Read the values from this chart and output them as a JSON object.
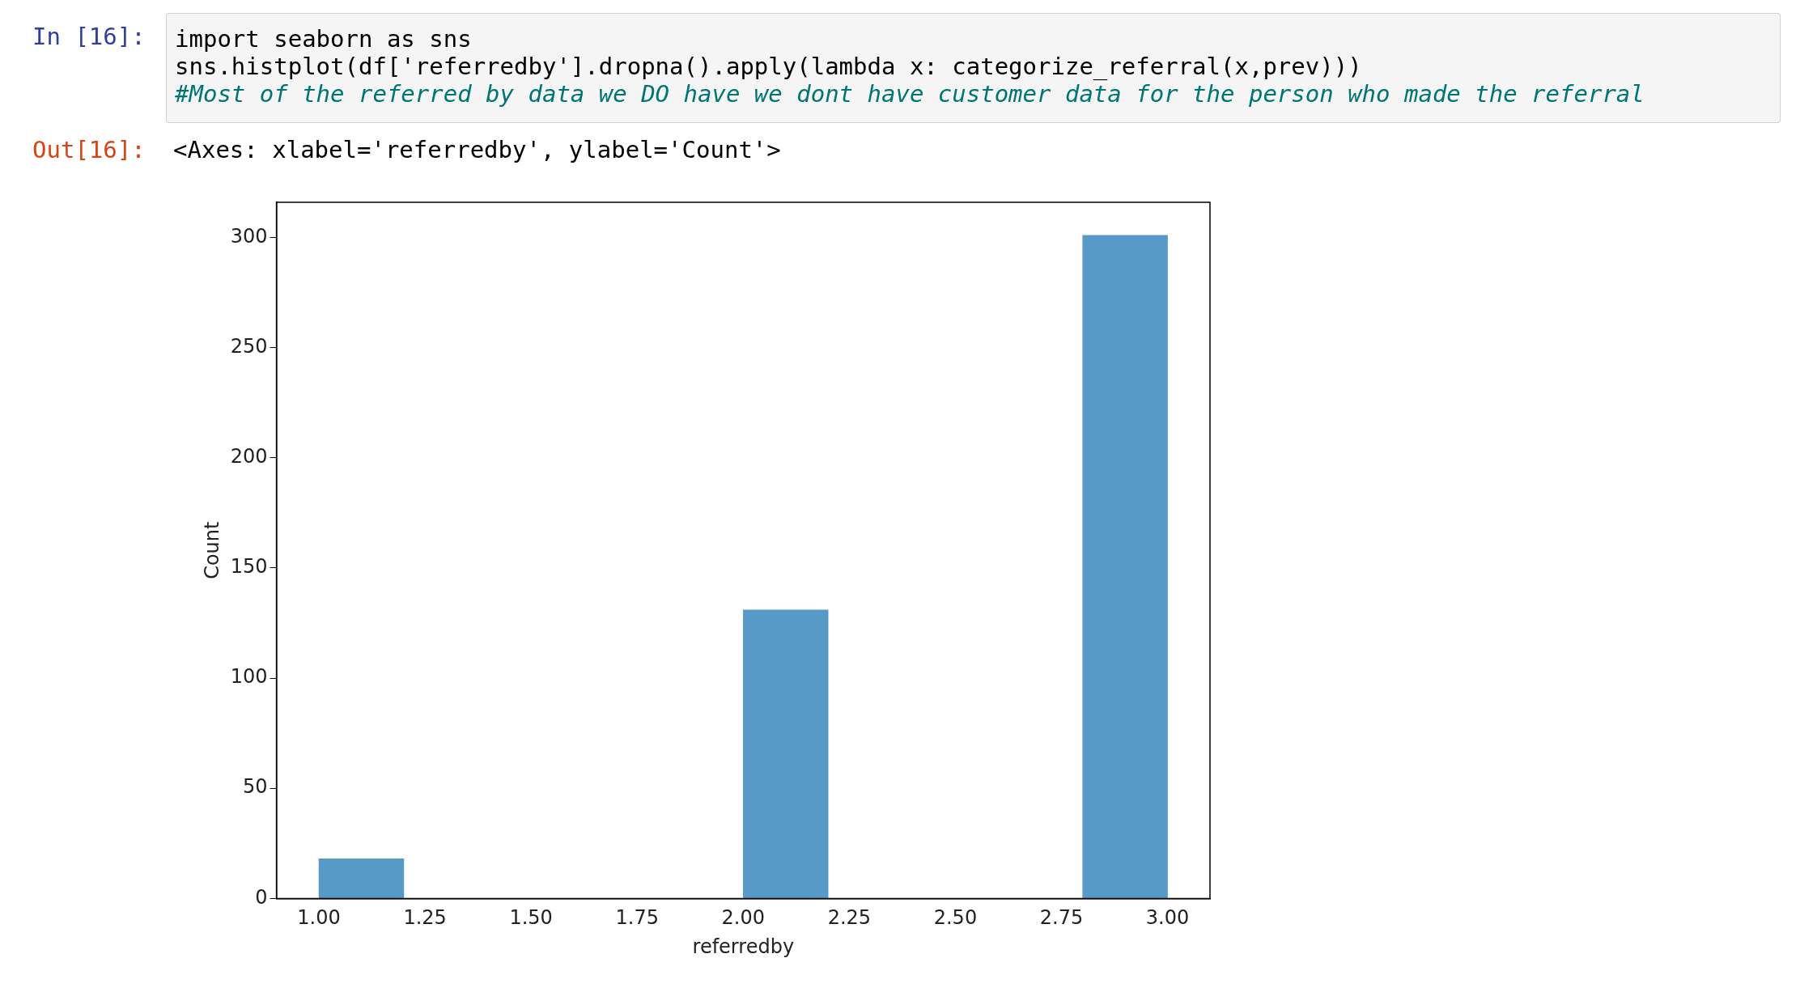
{
  "chart_data": {
    "type": "histogram",
    "xlabel": "referredby",
    "ylabel": "Count",
    "bins": [
      1.0,
      1.2,
      1.4,
      1.6,
      1.8,
      2.0,
      2.2,
      2.4,
      2.6,
      2.8,
      3.0
    ],
    "values": [
      18,
      0,
      0,
      0,
      0,
      131,
      0,
      0,
      0,
      301
    ],
    "color": "#5799c7",
    "xlim": [
      0.9,
      3.1
    ],
    "xticks": [
      {
        "value": 1,
        "label": "1.00"
      },
      {
        "value": 1.25,
        "label": "1.25"
      },
      {
        "value": 1.5,
        "label": "1.50"
      },
      {
        "value": 1.75,
        "label": "1.75"
      },
      {
        "value": 2,
        "label": "2.00"
      },
      {
        "value": 2.25,
        "label": "2.25"
      },
      {
        "value": 2.5,
        "label": "2.50"
      },
      {
        "value": 2.75,
        "label": "2.75"
      },
      {
        "value": 3,
        "label": "3.00"
      }
    ],
    "ylim": [
      0,
      316
    ],
    "yticks": [
      0,
      50,
      100,
      150,
      200,
      250,
      300
    ],
    "grid": false,
    "legend": false,
    "annotations": [
      "In [16]:",
      "import seaborn as sns",
      "sns.histplot(df['referredby'].dropna().apply(lambda x: categorize_referral(x,prev)))",
      "#Most of the referred by data we DO have we dont have customer data for the person who made the referral",
      "Out[16]:",
      "<Axes: xlabel='referredby', ylabel='Count'>"
    ]
  }
}
